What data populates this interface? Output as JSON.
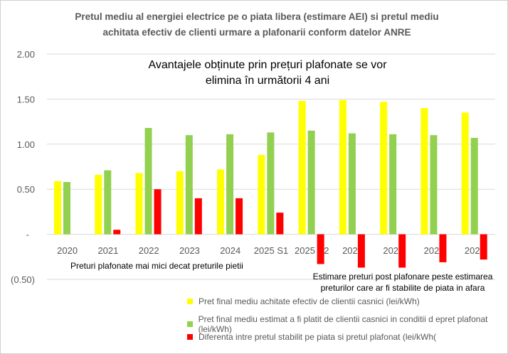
{
  "chart_data": {
    "type": "bar",
    "title": "Pretul mediu al energiei electrice pe o piata libera (estimare AEI) si pretul mediu achitata efectiv de clienti urmare a plafonarii conform datelor ANRE",
    "title_lines": [
      "Pretul mediu al energiei electrice pe o piata libera (estimare AEI) si pretul mediu",
      "achitata efectiv de clienti urmare a plafonarii conform datelor ANRE"
    ],
    "categories": [
      "2020",
      "2021",
      "2022",
      "2023",
      "2024",
      "2025 S1",
      "2025 S2",
      "2026",
      "2027",
      "2028",
      "2029"
    ],
    "ylim": [
      -0.5,
      2.0
    ],
    "yticks": [
      2.0,
      1.5,
      1.0,
      0.5,
      0,
      -0.5
    ],
    "ytick_labels": [
      "2.00",
      "1.50",
      "1.00",
      "0.50",
      "-",
      "(0.50)"
    ],
    "grid": true,
    "legend_position": "bottom",
    "series": [
      {
        "name": "Pret final mediu achitate efectiv de clientii casnici (lei/kWh)",
        "color": "#FFFF00",
        "values": [
          0.59,
          0.66,
          0.68,
          0.7,
          0.72,
          0.88,
          1.48,
          1.49,
          1.47,
          1.4,
          1.35
        ]
      },
      {
        "name": "Pret final mediu estimat a fi platit de clientii casnici in conditii d epret plafonat (lei/kWh)",
        "color": "#92D050",
        "values": [
          0.58,
          0.71,
          1.18,
          1.1,
          1.11,
          1.13,
          1.15,
          1.12,
          1.11,
          1.1,
          1.07
        ]
      },
      {
        "name": "Diferenta intre pretul stabilit pe piata si pretul plafonat (lei/kWh(",
        "color": "#FF0000",
        "values": [
          0,
          0.05,
          0.5,
          0.4,
          0.4,
          0.24,
          -0.33,
          -0.37,
          -0.37,
          -0.31,
          -0.28
        ]
      }
    ],
    "annotations": {
      "main": [
        "Avantajele obținute prin prețuri plafonate se vor",
        "elimina în următorii 4 ani"
      ],
      "left": "Preturi plafonate mai mici decat preturile pietii",
      "right": [
        "Estimare preturi post plafonare peste estimarea",
        "preturilor care ar fi stabilite de piata in afara"
      ]
    }
  }
}
